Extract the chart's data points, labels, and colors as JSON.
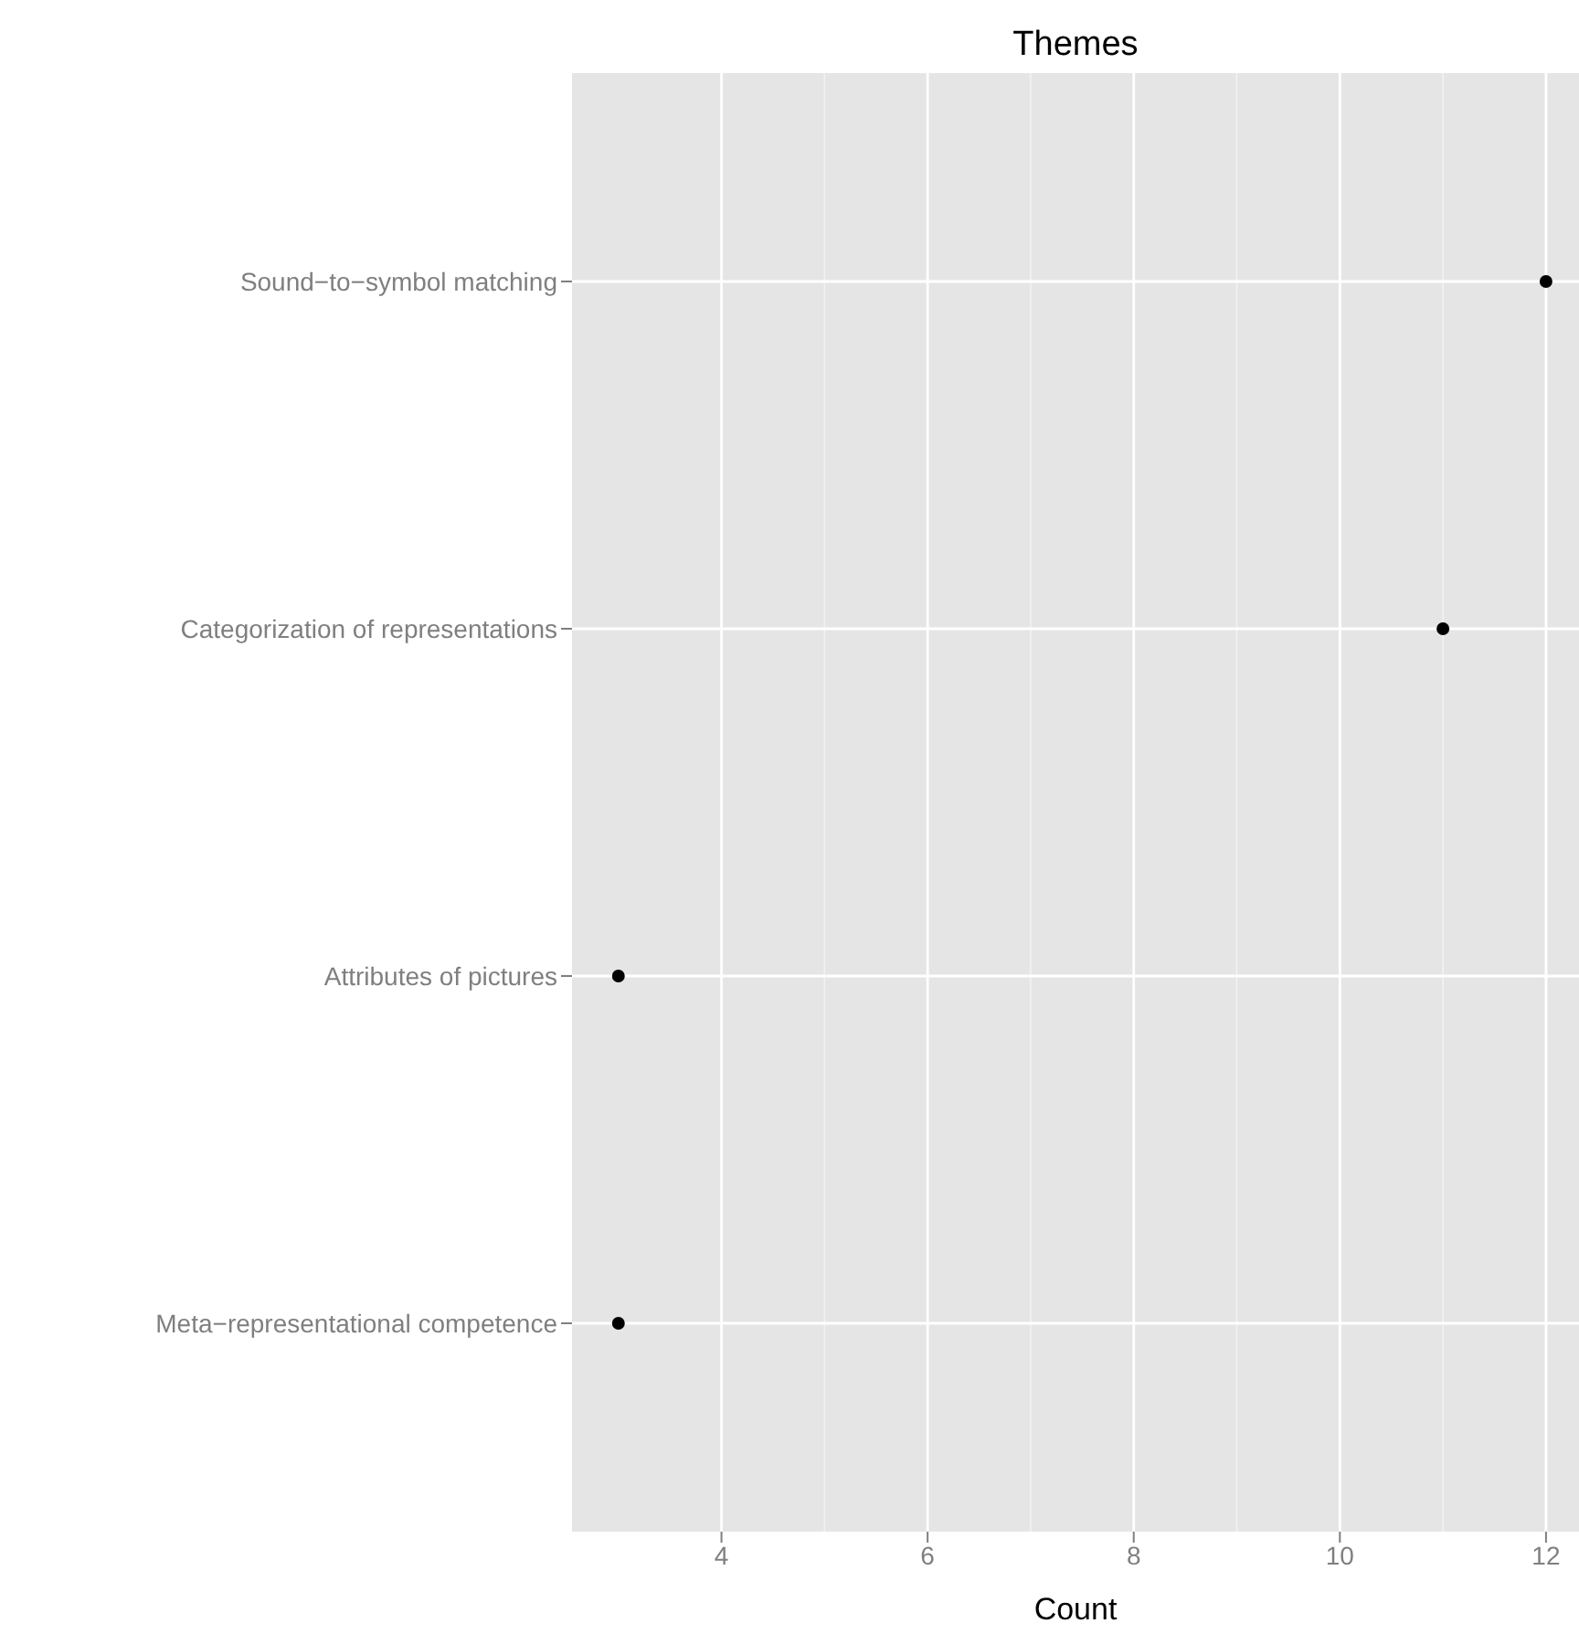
{
  "chart_data": {
    "type": "scatter",
    "title": "Themes",
    "xlabel": "Count",
    "categories": [
      "Sound−to−symbol matching",
      "Categorization of representations",
      "Attributes of pictures",
      "Meta−representational competence"
    ],
    "orientation": "horizontal",
    "values": [
      12,
      11,
      3,
      3
    ],
    "color": "#000000",
    "xlim": [
      2.55,
      12.32
    ],
    "xticks": [
      4,
      6,
      8,
      10,
      12
    ],
    "grid": true,
    "marker": "circle"
  }
}
